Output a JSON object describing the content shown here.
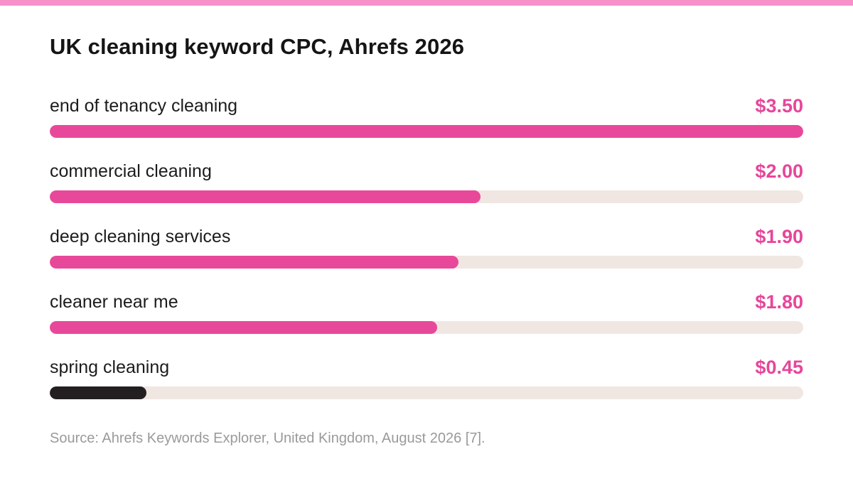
{
  "chart_data": {
    "type": "bar",
    "orientation": "horizontal",
    "title": "UK cleaning keyword CPC, Ahrefs 2026",
    "categories": [
      "end of tenancy cleaning",
      "commercial cleaning",
      "deep cleaning services",
      "cleaner near me",
      "spring cleaning"
    ],
    "values": [
      3.5,
      2.0,
      1.9,
      1.8,
      0.45
    ],
    "value_labels": [
      "$3.50",
      "$2.00",
      "$1.90",
      "$1.80",
      "$0.45"
    ],
    "xlim": [
      0,
      3.5
    ],
    "bar_colors": [
      "#e8489a",
      "#e8489a",
      "#e8489a",
      "#e8489a",
      "#231f20"
    ],
    "track_color": "#f0e7e2",
    "value_label_color": "#e6469a",
    "accent_color": "#f78fc9",
    "grid": false,
    "source": "Source: Ahrefs Keywords Explorer, United Kingdom, August 2026 [7]."
  }
}
